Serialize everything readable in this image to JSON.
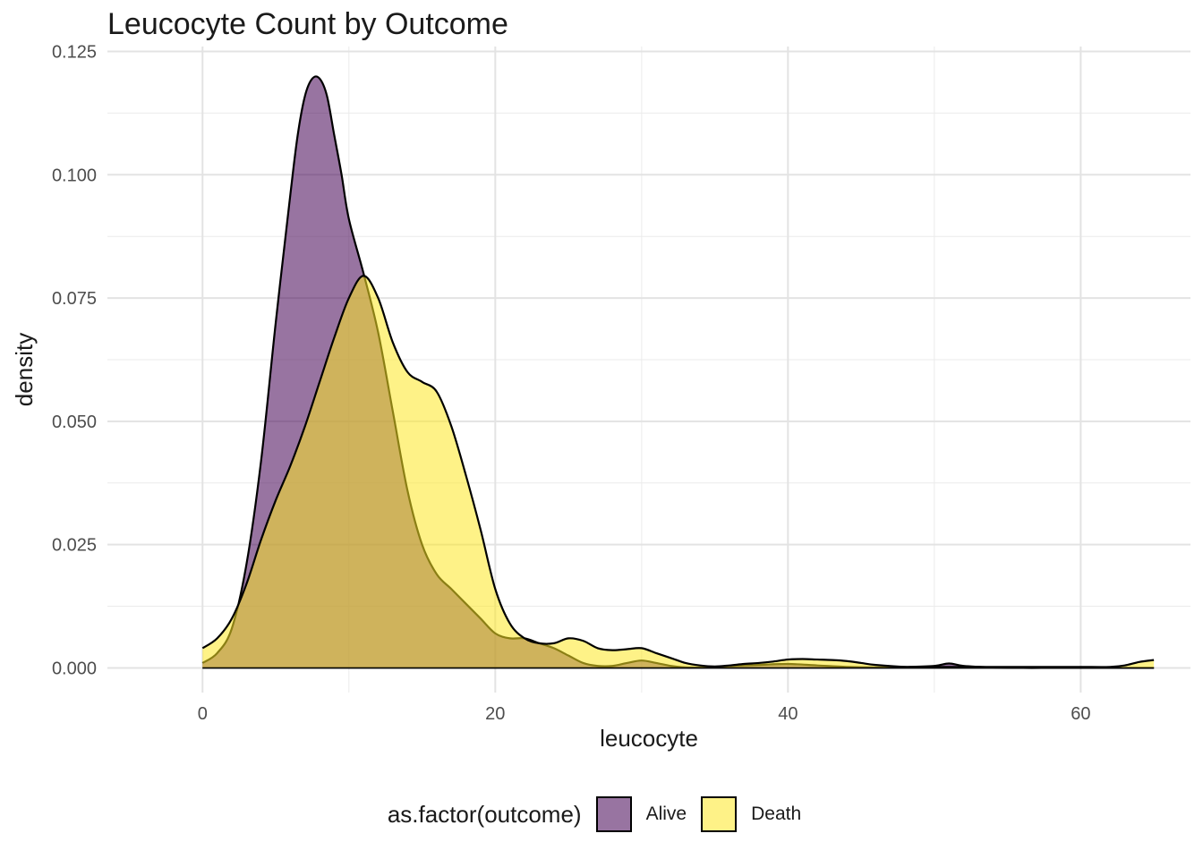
{
  "chart_data": {
    "type": "area",
    "title": "Leucocyte Count by Outcome",
    "xlabel": "leucocyte",
    "ylabel": "density",
    "xlim": [
      -6.5,
      67.5
    ],
    "ylim": [
      -0.005,
      0.126
    ],
    "x_ticks": [
      0,
      20,
      40,
      60
    ],
    "x_tick_labels": [
      "0",
      "20",
      "40",
      "60"
    ],
    "y_ticks": [
      0,
      0.025,
      0.05,
      0.075,
      0.1,
      0.125
    ],
    "y_tick_labels": [
      "0.000",
      "0.025",
      "0.050",
      "0.075",
      "0.100",
      "0.125"
    ],
    "grid": true,
    "legend_position": "bottom",
    "legend_title": "as.factor(outcome)",
    "series": [
      {
        "name": "Alive",
        "color": "#440154",
        "opacity": 0.55,
        "x": [
          0,
          1,
          2,
          3,
          4,
          5,
          6,
          6.5,
          7,
          7.5,
          8,
          8.5,
          9,
          9.5,
          10,
          11,
          12,
          13,
          14,
          15,
          16,
          17,
          18,
          19,
          20,
          21,
          22,
          23,
          24,
          25,
          26,
          27,
          28,
          29,
          30,
          31,
          32,
          33,
          34,
          35,
          36,
          37,
          38,
          40,
          42,
          44,
          46,
          48,
          50,
          51,
          52,
          54,
          56,
          58,
          60,
          62,
          64,
          65
        ],
        "y": [
          0.001,
          0.003,
          0.008,
          0.021,
          0.042,
          0.07,
          0.096,
          0.108,
          0.116,
          0.1195,
          0.1195,
          0.116,
          0.108,
          0.1,
          0.091,
          0.08,
          0.068,
          0.052,
          0.036,
          0.025,
          0.019,
          0.016,
          0.013,
          0.01,
          0.007,
          0.006,
          0.006,
          0.005,
          0.004,
          0.0025,
          0.001,
          0.0004,
          0.0004,
          0.001,
          0.0015,
          0.001,
          0.0004,
          0.0001,
          0.0001,
          0.0002,
          0.0004,
          0.0005,
          0.0006,
          0.0008,
          0.0005,
          0.0002,
          0.0001,
          0.0002,
          0.0004,
          0.0009,
          0.0004,
          0.0001,
          0.0,
          0.0,
          0.0,
          0.0,
          0.0,
          0.0
        ]
      },
      {
        "name": "Death",
        "color": "#FDE725",
        "opacity": 0.55,
        "x": [
          0,
          1,
          2,
          3,
          4,
          5,
          6,
          7,
          8,
          9,
          10,
          11,
          12,
          13,
          14,
          15,
          16,
          17,
          18,
          19,
          20,
          21,
          22,
          23,
          24,
          25,
          26,
          27,
          28,
          29,
          30,
          31,
          32,
          33,
          34,
          35,
          36,
          37,
          38,
          39,
          40,
          41,
          42,
          43,
          44,
          45,
          46,
          48,
          50,
          51,
          52,
          54,
          56,
          58,
          60,
          62,
          63,
          64,
          65
        ],
        "y": [
          0.004,
          0.006,
          0.01,
          0.017,
          0.026,
          0.034,
          0.041,
          0.049,
          0.058,
          0.067,
          0.075,
          0.0795,
          0.075,
          0.066,
          0.06,
          0.058,
          0.056,
          0.049,
          0.039,
          0.028,
          0.016,
          0.009,
          0.006,
          0.005,
          0.005,
          0.006,
          0.0055,
          0.004,
          0.0036,
          0.0038,
          0.004,
          0.003,
          0.002,
          0.001,
          0.0005,
          0.0003,
          0.0005,
          0.0008,
          0.001,
          0.0013,
          0.0017,
          0.0018,
          0.0017,
          0.0016,
          0.0014,
          0.001,
          0.0006,
          0.0002,
          0.0002,
          0.0002,
          0.0002,
          0.0002,
          0.0002,
          0.0002,
          0.0002,
          0.0002,
          0.0005,
          0.0012,
          0.0016
        ]
      }
    ]
  }
}
